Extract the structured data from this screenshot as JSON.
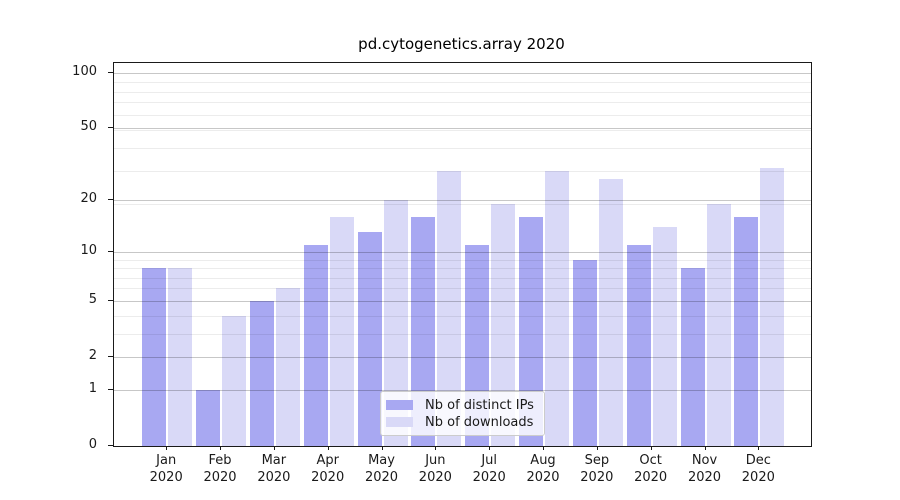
{
  "title": "pd.cytogenetics.array 2020",
  "chart_data": {
    "type": "bar",
    "title": "pd.cytogenetics.array 2020",
    "categories": [
      "Jan 2020",
      "Feb 2020",
      "Mar 2020",
      "Apr 2020",
      "May 2020",
      "Jun 2020",
      "Jul 2020",
      "Aug 2020",
      "Sep 2020",
      "Oct 2020",
      "Nov 2020",
      "Dec 2020"
    ],
    "series": [
      {
        "name": "Nb of distinct IPs",
        "color": "#a8a8f2",
        "values": [
          8,
          1,
          5,
          11,
          13,
          16,
          11,
          16,
          9,
          11,
          8,
          16
        ]
      },
      {
        "name": "Nb of downloads",
        "color": "#d9d9f7",
        "values": [
          8,
          4,
          6,
          16,
          20,
          29,
          19,
          29,
          26,
          14,
          19,
          30
        ]
      }
    ],
    "xlabel": "",
    "ylabel": "",
    "yscale": "log1p",
    "ylim": [
      0,
      113
    ],
    "yticks": [
      0,
      1,
      2,
      5,
      10,
      20,
      50,
      100
    ],
    "minor_gridlines": [
      3,
      4,
      6,
      7,
      8,
      9,
      19,
      29,
      39,
      49,
      59,
      69,
      79,
      89
    ],
    "grid": true,
    "legend_position": "inside-bottom-center",
    "axis_color": "#1a1a1a"
  }
}
